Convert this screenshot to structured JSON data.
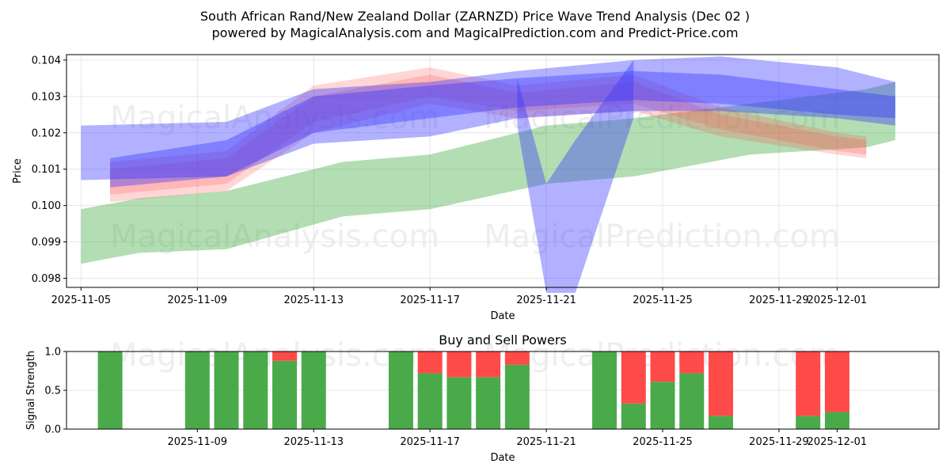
{
  "title": {
    "line1": "South African Rand/New Zealand Dollar (ZARNZD) Price Wave Trend Analysis (Dec 02 )",
    "line2": "powered by MagicalAnalysis.com and MagicalPrediction.com and Predict-Price.com"
  },
  "watermarks": [
    "MagicalAnalysis.com",
    "MagicalPrediction.com"
  ],
  "colors": {
    "green": "#2ca02c",
    "red": "#ff4444",
    "blue": "#3333ff",
    "buy": "#4aaa4a",
    "sell": "#ff4a4a"
  },
  "chart_data": [
    {
      "type": "area",
      "title": "",
      "xlabel": "Date",
      "ylabel": "Price",
      "x_range": [
        "2025-11-04T12:00",
        "2025-12-04T12:00"
      ],
      "ylim": [
        0.09775,
        0.10415
      ],
      "yticks": [
        0.098,
        0.099,
        0.1,
        0.101,
        0.102,
        0.103,
        0.104
      ],
      "ytick_labels": [
        "0.098",
        "0.099",
        "0.100",
        "0.101",
        "0.102",
        "0.103",
        "0.104"
      ],
      "xticks": [
        "2025-11-05",
        "2025-11-09",
        "2025-11-13",
        "2025-11-17",
        "2025-11-21",
        "2025-11-25",
        "2025-11-29",
        "2025-12-01"
      ],
      "xtick_labels": [
        "2025-11-05",
        "2025-11-09",
        "2025-11-13",
        "2025-11-17",
        "2025-11-21",
        "2025-11-25",
        "2025-11-29",
        "2025-12-01"
      ],
      "grid": true,
      "series": [
        {
          "name": "green-band",
          "color": "green",
          "x": [
            "2025-11-05",
            "2025-11-07",
            "2025-11-10",
            "2025-11-14",
            "2025-11-17",
            "2025-11-21",
            "2025-11-24",
            "2025-11-28",
            "2025-12-02",
            "2025-12-03"
          ],
          "upper": [
            0.0999,
            0.1002,
            0.1004,
            0.1012,
            0.1014,
            0.1022,
            0.1024,
            0.1028,
            0.1032,
            0.1034
          ],
          "lower": [
            0.0984,
            0.0987,
            0.0988,
            0.0997,
            0.0999,
            0.1006,
            0.1008,
            0.1014,
            0.1016,
            0.1018
          ]
        },
        {
          "name": "red-wave-1",
          "color": "red",
          "x": [
            "2025-11-06",
            "2025-11-10",
            "2025-11-13",
            "2025-11-17",
            "2025-11-20",
            "2025-11-24",
            "2025-11-27",
            "2025-12-01",
            "2025-12-02"
          ],
          "upper": [
            0.1012,
            0.1015,
            0.1033,
            0.1038,
            0.1033,
            0.1036,
            0.1027,
            0.102,
            0.1019
          ],
          "lower": [
            0.1003,
            0.1006,
            0.1023,
            0.103,
            0.1026,
            0.1028,
            0.1021,
            0.1015,
            0.1014
          ]
        },
        {
          "name": "red-wave-2",
          "color": "red",
          "x": [
            "2025-11-06",
            "2025-11-10",
            "2025-11-13",
            "2025-11-17",
            "2025-11-20",
            "2025-11-24",
            "2025-11-27",
            "2025-12-01",
            "2025-12-02"
          ],
          "upper": [
            0.101,
            0.1013,
            0.103,
            0.1036,
            0.1031,
            0.1034,
            0.1025,
            0.1019,
            0.1018
          ],
          "lower": [
            0.1001,
            0.1004,
            0.102,
            0.1028,
            0.1024,
            0.1026,
            0.1019,
            0.1014,
            0.1013
          ]
        },
        {
          "name": "blue-wave-1",
          "color": "blue",
          "x": [
            "2025-11-05",
            "2025-11-10",
            "2025-11-13",
            "2025-11-17",
            "2025-11-20",
            "2025-11-24",
            "2025-11-27",
            "2025-12-01",
            "2025-12-03"
          ],
          "upper": [
            0.1022,
            0.1023,
            0.1032,
            0.1034,
            0.1037,
            0.104,
            0.1041,
            0.1038,
            0.1034
          ],
          "lower": [
            0.1007,
            0.1008,
            0.1017,
            0.1019,
            0.1024,
            0.1026,
            0.1026,
            0.1024,
            0.1022
          ]
        },
        {
          "name": "blue-wave-2",
          "color": "blue",
          "x": [
            "2025-11-06",
            "2025-11-10",
            "2025-11-13",
            "2025-11-17",
            "2025-11-20",
            "2025-11-24",
            "2025-11-27",
            "2025-12-01",
            "2025-12-03"
          ],
          "upper": [
            0.1013,
            0.1018,
            0.103,
            0.1033,
            0.1035,
            0.1037,
            0.1036,
            0.1032,
            0.103
          ],
          "lower": [
            0.1005,
            0.1008,
            0.102,
            0.1024,
            0.1027,
            0.1029,
            0.1028,
            0.1025,
            0.1024
          ]
        },
        {
          "name": "blue-spike",
          "color": "blue",
          "x": [
            "2025-11-20",
            "2025-11-21",
            "2025-11-22",
            "2025-11-24"
          ],
          "upper": [
            0.1035,
            0.1006,
            0.1018,
            0.104
          ],
          "lower": [
            0.1022,
            0.0976,
            0.0976,
            0.1024
          ]
        }
      ]
    },
    {
      "type": "bar",
      "title": "Buy and Sell Powers",
      "xlabel": "Date",
      "ylabel": "Signal Strength",
      "ylim": [
        0,
        1.0
      ],
      "yticks": [
        0.0,
        0.5,
        1.0
      ],
      "ytick_labels": [
        "0.0",
        "0.5",
        "1.0"
      ],
      "xticks": [
        "2025-11-09",
        "2025-11-13",
        "2025-11-17",
        "2025-11-21",
        "2025-11-25",
        "2025-11-29",
        "2025-12-01"
      ],
      "xtick_labels": [
        "2025-11-09",
        "2025-11-13",
        "2025-11-17",
        "2025-11-21",
        "2025-11-25",
        "2025-11-29",
        "2025-12-01"
      ],
      "grid": true,
      "categories": [
        "2025-11-06",
        "2025-11-09",
        "2025-11-10",
        "2025-11-11",
        "2025-11-12",
        "2025-11-13",
        "2025-11-16",
        "2025-11-17",
        "2025-11-18",
        "2025-11-19",
        "2025-11-20",
        "2025-11-23",
        "2025-11-24",
        "2025-11-25",
        "2025-11-26",
        "2025-11-27",
        "2025-11-30",
        "2025-12-01"
      ],
      "series": [
        {
          "name": "Buy",
          "color": "buy",
          "values": [
            1.0,
            1.0,
            1.0,
            1.0,
            0.88,
            1.0,
            1.0,
            0.72,
            0.67,
            0.67,
            0.83,
            1.0,
            0.33,
            0.61,
            0.72,
            0.17,
            0.17,
            0.22
          ]
        },
        {
          "name": "Sell",
          "color": "sell",
          "values": [
            0.0,
            0.0,
            0.0,
            0.0,
            0.12,
            0.0,
            0.0,
            0.28,
            0.33,
            0.33,
            0.17,
            0.0,
            0.67,
            0.39,
            0.28,
            0.83,
            0.83,
            0.78
          ]
        }
      ]
    }
  ]
}
